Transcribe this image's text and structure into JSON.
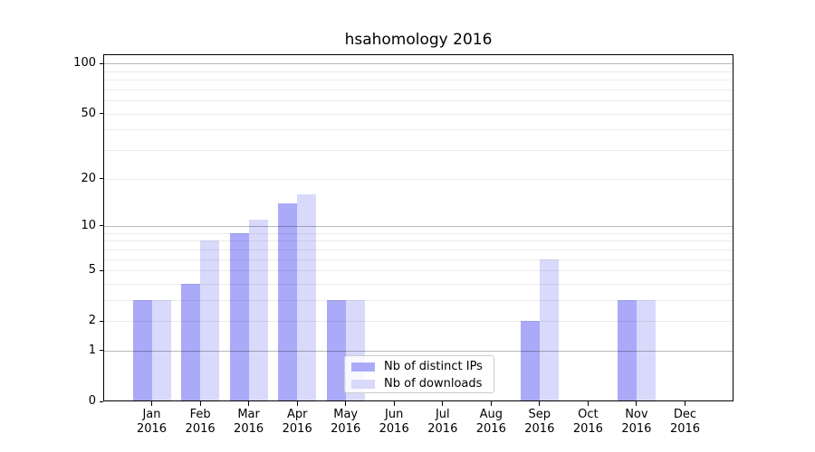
{
  "chart_data": {
    "type": "bar",
    "title": "hsahomology 2016",
    "year": "2016",
    "categories": [
      "Jan",
      "Feb",
      "Mar",
      "Apr",
      "May",
      "Jun",
      "Jul",
      "Aug",
      "Sep",
      "Oct",
      "Nov",
      "Dec"
    ],
    "series": [
      {
        "name": "Nb of distinct IPs",
        "color": "#aaaaf9",
        "values": [
          3,
          4,
          9,
          14,
          3,
          0,
          0,
          0,
          2,
          0,
          3,
          0
        ]
      },
      {
        "name": "Nb of downloads",
        "color": "#d9d9fb",
        "values": [
          3,
          8,
          11,
          16,
          3,
          0,
          0,
          0,
          6,
          0,
          3,
          0
        ]
      }
    ],
    "y_axis": {
      "scale": "log1p",
      "tick_values": [
        0,
        1,
        2,
        5,
        10,
        20,
        50,
        100
      ],
      "major_gridline_values": [
        1,
        10,
        100
      ],
      "minor_gridline_values": [
        2,
        3,
        4,
        5,
        6,
        7,
        8,
        9,
        20,
        30,
        40,
        50,
        60,
        70,
        80,
        90
      ],
      "ylim": [
        0,
        115
      ]
    },
    "legend": {
      "entries": [
        "Nb of distinct IPs",
        "Nb of downloads"
      ],
      "position": "lower-center"
    },
    "grid": true
  },
  "colors": {
    "bar_distinct_ips": "#aaaaf9",
    "bar_downloads": "#d9d9fb",
    "major_grid": "#b0b0b0",
    "minor_grid": "#ececec",
    "axis": "#000000",
    "legend_border": "#cccccc",
    "background": "#ffffff"
  }
}
